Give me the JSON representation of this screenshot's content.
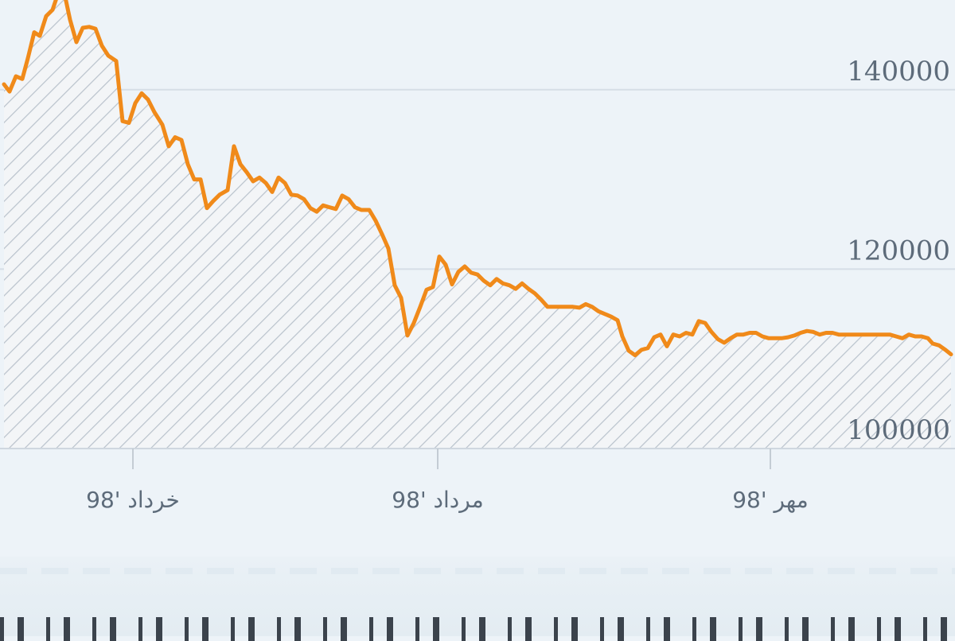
{
  "chart_data": {
    "type": "area",
    "title": "",
    "xlabel": "",
    "ylabel": "",
    "ylim": [
      100000,
      150000
    ],
    "grid": true,
    "yticks": [
      {
        "value": 100000,
        "label": "100000"
      },
      {
        "value": 120000,
        "label": "120000"
      },
      {
        "value": 140000,
        "label": "140000"
      }
    ],
    "x_range": [
      0,
      1200
    ],
    "xticks": [
      {
        "x": 167,
        "label": "خرداد '98"
      },
      {
        "x": 550,
        "label": "مرداد '98"
      },
      {
        "x": 968,
        "label": "مهر '98"
      }
    ],
    "line_color": "#f08a1a",
    "fill_pattern_color": "#b9c2cc",
    "series": [
      {
        "points": [
          [
            5,
            140600
          ],
          [
            12,
            139800
          ],
          [
            20,
            141500
          ],
          [
            28,
            141200
          ],
          [
            35,
            143500
          ],
          [
            43,
            146400
          ],
          [
            50,
            146000
          ],
          [
            58,
            148200
          ],
          [
            66,
            148900
          ],
          [
            74,
            151000
          ],
          [
            82,
            150300
          ],
          [
            88,
            147800
          ],
          [
            96,
            145300
          ],
          [
            104,
            146900
          ],
          [
            112,
            147000
          ],
          [
            120,
            146800
          ],
          [
            128,
            144900
          ],
          [
            136,
            143800
          ],
          [
            146,
            143200
          ],
          [
            154,
            136500
          ],
          [
            162,
            136300
          ],
          [
            170,
            138500
          ],
          [
            178,
            139600
          ],
          [
            186,
            138900
          ],
          [
            194,
            137500
          ],
          [
            204,
            136100
          ],
          [
            212,
            133700
          ],
          [
            220,
            134700
          ],
          [
            228,
            134400
          ],
          [
            236,
            131700
          ],
          [
            244,
            130000
          ],
          [
            252,
            130000
          ],
          [
            260,
            126800
          ],
          [
            268,
            127600
          ],
          [
            276,
            128300
          ],
          [
            286,
            128800
          ],
          [
            294,
            133700
          ],
          [
            302,
            131700
          ],
          [
            310,
            130800
          ],
          [
            318,
            129800
          ],
          [
            326,
            130200
          ],
          [
            334,
            129600
          ],
          [
            342,
            128600
          ],
          [
            350,
            130200
          ],
          [
            358,
            129600
          ],
          [
            366,
            128300
          ],
          [
            374,
            128200
          ],
          [
            382,
            127800
          ],
          [
            390,
            126800
          ],
          [
            398,
            126400
          ],
          [
            406,
            127100
          ],
          [
            414,
            126900
          ],
          [
            422,
            126700
          ],
          [
            430,
            128200
          ],
          [
            438,
            127800
          ],
          [
            446,
            126900
          ],
          [
            454,
            126600
          ],
          [
            464,
            126600
          ],
          [
            472,
            125400
          ],
          [
            480,
            123900
          ],
          [
            488,
            122300
          ],
          [
            496,
            118200
          ],
          [
            504,
            116800
          ],
          [
            512,
            112600
          ],
          [
            520,
            114000
          ],
          [
            528,
            115800
          ],
          [
            536,
            117700
          ],
          [
            544,
            118000
          ],
          [
            552,
            121400
          ],
          [
            560,
            120500
          ],
          [
            568,
            118300
          ],
          [
            576,
            119700
          ],
          [
            584,
            120300
          ],
          [
            592,
            119600
          ],
          [
            600,
            119400
          ],
          [
            608,
            118700
          ],
          [
            616,
            118200
          ],
          [
            624,
            118900
          ],
          [
            632,
            118400
          ],
          [
            640,
            118200
          ],
          [
            648,
            117800
          ],
          [
            656,
            118400
          ],
          [
            664,
            117800
          ],
          [
            672,
            117300
          ],
          [
            680,
            116600
          ],
          [
            688,
            115800
          ],
          [
            696,
            115800
          ],
          [
            704,
            115800
          ],
          [
            712,
            115800
          ],
          [
            720,
            115800
          ],
          [
            728,
            115700
          ],
          [
            736,
            116100
          ],
          [
            744,
            115800
          ],
          [
            752,
            115300
          ],
          [
            760,
            115000
          ],
          [
            768,
            114700
          ],
          [
            776,
            114300
          ],
          [
            782,
            112500
          ],
          [
            790,
            110900
          ],
          [
            798,
            110400
          ],
          [
            806,
            111000
          ],
          [
            814,
            111200
          ],
          [
            822,
            112400
          ],
          [
            830,
            112700
          ],
          [
            838,
            111400
          ],
          [
            846,
            112700
          ],
          [
            854,
            112500
          ],
          [
            862,
            112900
          ],
          [
            870,
            112700
          ],
          [
            878,
            114200
          ],
          [
            886,
            114000
          ],
          [
            894,
            113000
          ],
          [
            902,
            112200
          ],
          [
            910,
            111800
          ],
          [
            918,
            112300
          ],
          [
            926,
            112700
          ],
          [
            934,
            112700
          ],
          [
            942,
            112900
          ],
          [
            950,
            112900
          ],
          [
            958,
            112500
          ],
          [
            966,
            112300
          ],
          [
            974,
            112300
          ],
          [
            982,
            112300
          ],
          [
            990,
            112400
          ],
          [
            998,
            112600
          ],
          [
            1006,
            112900
          ],
          [
            1014,
            113100
          ],
          [
            1022,
            113000
          ],
          [
            1030,
            112700
          ],
          [
            1038,
            112900
          ],
          [
            1046,
            112900
          ],
          [
            1054,
            112700
          ],
          [
            1062,
            112700
          ],
          [
            1070,
            112700
          ],
          [
            1078,
            112700
          ],
          [
            1086,
            112700
          ],
          [
            1094,
            112700
          ],
          [
            1102,
            112700
          ],
          [
            1110,
            112700
          ],
          [
            1118,
            112700
          ],
          [
            1126,
            112500
          ],
          [
            1134,
            112300
          ],
          [
            1142,
            112700
          ],
          [
            1150,
            112500
          ],
          [
            1158,
            112500
          ],
          [
            1166,
            112300
          ],
          [
            1172,
            111700
          ],
          [
            1180,
            111500
          ],
          [
            1188,
            111000
          ],
          [
            1195,
            110500
          ]
        ]
      }
    ]
  },
  "caption": {
    "visible_text": ""
  }
}
